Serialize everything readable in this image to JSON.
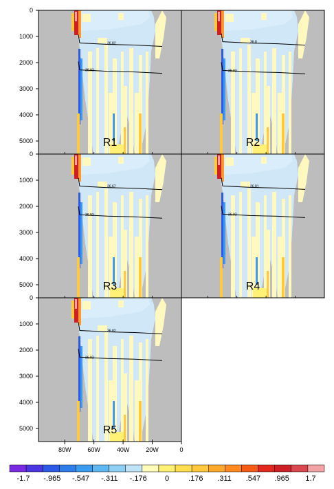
{
  "chart_data": {
    "type": "heatmap",
    "title": "",
    "y_axis": {
      "ticks": [
        "0",
        "1000",
        "2000",
        "3000",
        "4000",
        "5000"
      ],
      "values": [
        0,
        1000,
        2000,
        3000,
        4000,
        5000
      ],
      "range": [
        0,
        5500
      ]
    },
    "x_axis": {
      "ticks": [
        "80W",
        "60W",
        "40W",
        "20W",
        "0"
      ],
      "values": [
        -80,
        -60,
        -40,
        -20,
        0
      ],
      "range": [
        -98,
        0
      ]
    },
    "panels": [
      {
        "label": "R1",
        "contours": [
          {
            "label": "36.82",
            "depth": 1250
          },
          {
            "label": "36.93",
            "depth": 2280
          }
        ]
      },
      {
        "label": "R2",
        "contours": [
          {
            "label": "36.8",
            "depth": 1200
          },
          {
            "label": "36.93",
            "depth": 2300
          }
        ]
      },
      {
        "label": "R3",
        "contours": [
          {
            "label": "36.67",
            "depth": 1230
          },
          {
            "label": "36.93",
            "depth": 2320
          }
        ]
      },
      {
        "label": "R4",
        "contours": [
          {
            "label": "36.81",
            "depth": 1220
          },
          {
            "label": "36.93",
            "depth": 2300
          }
        ]
      },
      {
        "label": "R5",
        "contours": [
          {
            "label": "36.82",
            "depth": 1250
          },
          {
            "label": "36.93",
            "depth": 2270
          }
        ]
      }
    ],
    "colorbar": {
      "labels": [
        "-1.7",
        "-.965",
        "-.547",
        "-.311",
        "-.176",
        "0",
        ".176",
        ".311",
        ".547",
        ".965",
        "1.7"
      ],
      "colors": [
        "#7a2be2",
        "#4a35e0",
        "#2b5be6",
        "#2f7de8",
        "#3b9bee",
        "#60b8f2",
        "#8fd0f5",
        "#bfe3f7",
        "#fffbb8",
        "#fff176",
        "#ffde4f",
        "#ffc83d",
        "#ffa92e",
        "#ff8a22",
        "#f65b18",
        "#e3281d",
        "#cc1f26",
        "#d9494f",
        "#f3a3a6"
      ]
    }
  }
}
